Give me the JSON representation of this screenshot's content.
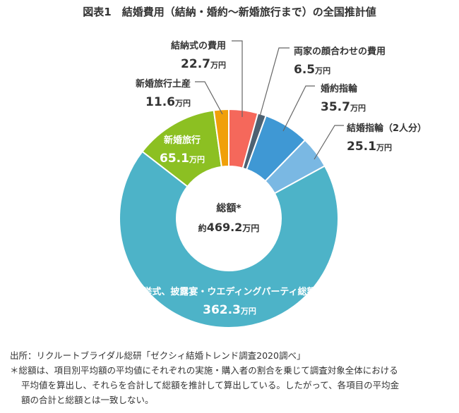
{
  "chart_data": {
    "type": "pie",
    "title": "図表1　結婚費用（結納・婚約〜新婚旅行まで）の全国推計値",
    "unit": "万円",
    "donut": true,
    "slices": [
      {
        "label": "結納式の費用",
        "value": 22.7,
        "display": "22.7",
        "color": "#f5685b"
      },
      {
        "label": "両家の顔合わせの費用",
        "value": 6.5,
        "display": "6.5",
        "color": "#4d6273"
      },
      {
        "label": "婚約指輪",
        "value": 35.7,
        "display": "35.7",
        "color": "#3f98d4"
      },
      {
        "label": "結婚指輪（2人分）",
        "value": 25.1,
        "display": "25.1",
        "color": "#7ab8e3"
      },
      {
        "label": "挙式、披露宴・ウエディングパーティ総額",
        "value": 362.3,
        "display": "362.3",
        "color": "#4db3c8"
      },
      {
        "label": "新婚旅行",
        "value": 65.1,
        "display": "65.1",
        "color": "#8cc022"
      },
      {
        "label": "新婚旅行土産",
        "value": 11.6,
        "display": "11.6",
        "color": "#f0a00a"
      }
    ],
    "center": {
      "label": "総額*",
      "prefix": "約",
      "value": "469.2",
      "unit": "万円"
    }
  },
  "notes": {
    "source": "出所：リクルートブライダル総研「ゼクシィ結婚トレンド調査2020調べ」",
    "footnote_1": "＊総額は、項目別平均額の平均値にそれぞれの実施・購入者の割合を乗じて調査対象全体における",
    "footnote_2": "平均値を算出し、それらを合計して総額を推計して算出している。したがって、各項目の平均金",
    "footnote_3": "額の合計と総額とは一致しない。"
  }
}
